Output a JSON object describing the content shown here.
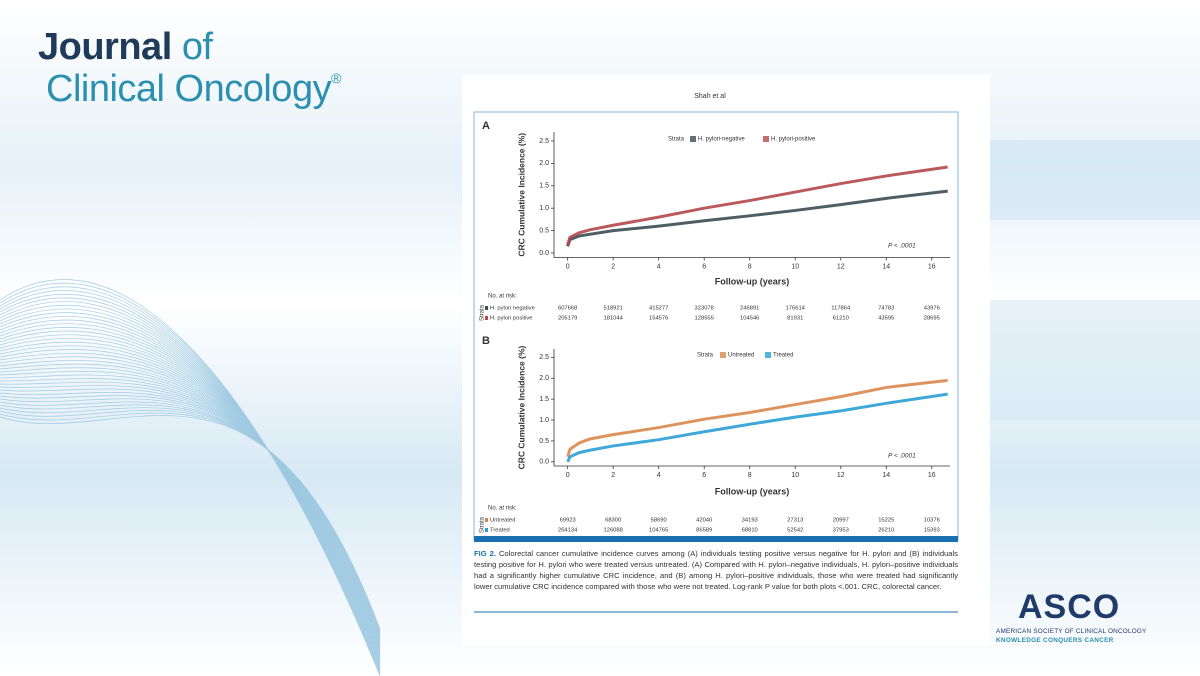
{
  "header": {
    "journal_line1": "Journal",
    "journal_of": "of",
    "journal_line2": "Clinical Oncology",
    "registered": "®"
  },
  "figure": {
    "author": "Shah et al",
    "caption_label": "FIG 2.",
    "caption": "Colorectal cancer cumulative incidence curves among (A) individuals testing positive versus negative for H. pylori and (B) individuals testing positive for H. pylori who were treated versus untreated. (A) Compared with H. pylori–negative individuals, H. pylori–positive individuals had a significantly higher cumulative CRC incidence, and (B) among H. pylori–positive individuals, those who were treated had significantly lower cumulative CRC incidence compared with those who were not treated. Log-rank P value for both plots <.001. CRC, colorectal cancer."
  },
  "chart_data": [
    {
      "type": "line",
      "panel": "A",
      "legend_title": "Strata",
      "ylabel": "CRC Cumulative Incidence (%)",
      "xlabel": "Follow-up (years)",
      "annotation": "P < .0001",
      "x": [
        0,
        0.1,
        0.5,
        1,
        2,
        4,
        6,
        8,
        10,
        12,
        14,
        16.7
      ],
      "series": [
        {
          "name": "H. pylori-negative",
          "color": "#3b4d54",
          "values": [
            0.15,
            0.3,
            0.38,
            0.42,
            0.5,
            0.6,
            0.72,
            0.83,
            0.95,
            1.08,
            1.22,
            1.38
          ]
        },
        {
          "name": "H. pylori-positive",
          "color": "#b5474b",
          "values": [
            0.18,
            0.35,
            0.45,
            0.52,
            0.62,
            0.8,
            1.0,
            1.17,
            1.36,
            1.55,
            1.72,
            1.92
          ]
        }
      ],
      "xlim": [
        -0.6,
        16.8
      ],
      "ylim": [
        -0.1,
        2.7
      ],
      "xticks": [
        0,
        2,
        4,
        6,
        8,
        10,
        12,
        14,
        16
      ],
      "yticks": [
        {
          "value": 0,
          "label": "0.0"
        },
        0.5,
        {
          "value": 1,
          "label": "1.0"
        },
        1.5,
        {
          "value": 2,
          "label": "2.0"
        },
        2.5
      ]
    },
    {
      "type": "line",
      "panel": "B",
      "legend_title": "Strata",
      "ylabel": "CRC Cumulative Incidence (%)",
      "xlabel": "Follow-up (years)",
      "annotation": "P < .0001",
      "x": [
        0,
        0.1,
        0.5,
        1,
        2,
        4,
        6,
        8,
        10,
        12,
        14,
        16.7
      ],
      "series": [
        {
          "name": "Untreated",
          "color": "#d9874c",
          "values": [
            0.12,
            0.3,
            0.45,
            0.55,
            0.65,
            0.82,
            1.02,
            1.18,
            1.37,
            1.56,
            1.78,
            1.95
          ]
        },
        {
          "name": "Treated",
          "color": "#2a9fd6",
          "values": [
            0.0,
            0.12,
            0.22,
            0.28,
            0.38,
            0.53,
            0.72,
            0.9,
            1.07,
            1.22,
            1.4,
            1.62
          ]
        }
      ],
      "xlim": [
        -0.6,
        16.8
      ],
      "ylim": [
        -0.1,
        2.7
      ],
      "xticks": [
        0,
        2,
        4,
        6,
        8,
        10,
        12,
        14,
        16
      ],
      "yticks": [
        {
          "value": 0,
          "label": "0.0"
        },
        0.5,
        {
          "value": 1,
          "label": "1.0"
        },
        1.5,
        {
          "value": 2,
          "label": "2.0"
        },
        2.5
      ]
    }
  ],
  "risk_tables": [
    {
      "title": "No. at risk:",
      "strata_label": "Strata",
      "rows": [
        {
          "name": "H. pylori negative",
          "values": [
            607668,
            518921,
            415277,
            323078,
            246891,
            176614,
            117864,
            74783,
            43976
          ]
        },
        {
          "name": "H. pylori positive",
          "values": [
            205179,
            181044,
            154576,
            128555,
            104546,
            81931,
            61210,
            43595,
            28695
          ]
        }
      ]
    },
    {
      "title": "No. at risk:",
      "strata_label": "Strata",
      "rows": [
        {
          "name": "Untreated",
          "values": [
            69923,
            68300,
            58690,
            42040,
            34193,
            27313,
            20997,
            15225,
            10376
          ]
        },
        {
          "name": "Treated",
          "values": [
            264134,
            126088,
            104765,
            86589,
            68810,
            52542,
            37953,
            26210,
            15393
          ]
        }
      ]
    }
  ],
  "footer": {
    "logo": "ASCO",
    "society": "AMERICAN SOCIETY OF CLINICAL ONCOLOGY",
    "tagline": "KNOWLEDGE CONQUERS CANCER"
  }
}
